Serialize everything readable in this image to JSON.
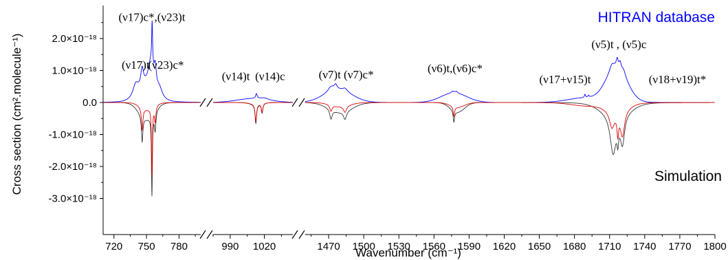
{
  "chart_data": {
    "type": "line",
    "xlabel": "Wavenumber (cm⁻¹)",
    "ylabel": "Cross section (cm².molecule⁻¹)",
    "ylim": [
      -3.3e-18,
      2.55e-18
    ],
    "grid": false,
    "x_segments": [
      {
        "range": [
          710,
          800
        ],
        "ticks": [
          720,
          750,
          780
        ]
      },
      {
        "range": [
          975,
          1045
        ],
        "ticks": [
          990,
          1020
        ]
      },
      {
        "range": [
          1450,
          1800
        ],
        "ticks": [
          1470,
          1500,
          1530,
          1560,
          1590,
          1620,
          1650,
          1680,
          1710,
          1740,
          1770,
          1800
        ]
      }
    ],
    "y_ticks": [
      {
        "value": 2e-18,
        "label": "2.0×10⁻¹⁸"
      },
      {
        "value": 1e-18,
        "label": "1.0×10⁻¹⁸"
      },
      {
        "value": 0,
        "label": "0.0"
      },
      {
        "value": -1e-18,
        "label": "-1.0×10⁻¹⁸"
      },
      {
        "value": -2e-18,
        "label": "-2.0×10⁻¹⁸"
      },
      {
        "value": -3e-18,
        "label": "-3.0×10⁻¹⁸"
      }
    ],
    "series": [
      {
        "name": "HITRAN database",
        "color": "#0000ff",
        "sign": 1,
        "background": [
          {
            "center": 750,
            "width": 8,
            "height": 0.45
          },
          {
            "center": 1010,
            "width": 14,
            "height": 0.12
          },
          {
            "center": 1478,
            "width": 12,
            "height": 0.38
          },
          {
            "center": 1577,
            "width": 11,
            "height": 0.3
          },
          {
            "center": 1688,
            "width": 14,
            "height": 0.14
          },
          {
            "center": 1716,
            "width": 9,
            "height": 1.05
          }
        ],
        "bands": [
          {
            "center": 740,
            "width": 3,
            "height": 0.35
          },
          {
            "center": 746,
            "width": 1.5,
            "height": 0.55
          },
          {
            "center": 754,
            "width": 3,
            "height": 0.8
          },
          {
            "center": 755.2,
            "width": 0.5,
            "height": 1.35
          },
          {
            "center": 758,
            "width": 1.2,
            "height": 0.6
          },
          {
            "center": 762,
            "width": 3,
            "height": 0.25
          },
          {
            "center": 1013,
            "width": 0.8,
            "height": 0.15
          },
          {
            "center": 1020,
            "width": 4,
            "height": 0.05
          },
          {
            "center": 1472,
            "width": 3,
            "height": 0.15
          },
          {
            "center": 1476,
            "width": 1.5,
            "height": 0.15
          },
          {
            "center": 1484,
            "width": 2.5,
            "height": 0.1
          },
          {
            "center": 1576,
            "width": 1.2,
            "height": 0.05
          },
          {
            "center": 1579,
            "width": 1.2,
            "height": 0.05
          },
          {
            "center": 1689,
            "width": 0.6,
            "height": 0.1
          },
          {
            "center": 1692,
            "width": 0.6,
            "height": 0.06
          },
          {
            "center": 1712,
            "width": 2.5,
            "height": 0.2
          },
          {
            "center": 1716.5,
            "width": 1,
            "height": 0.25
          },
          {
            "center": 1719,
            "width": 1,
            "height": 0.2
          },
          {
            "center": 1722,
            "width": 2,
            "height": 0.15
          }
        ]
      },
      {
        "name": "Simulation",
        "color": "#333333",
        "sign": -1,
        "background": [
          {
            "center": 750,
            "width": 7,
            "height": 0.5
          },
          {
            "center": 1012,
            "width": 5,
            "height": 0.05
          },
          {
            "center": 1480,
            "width": 10,
            "height": 0.3
          },
          {
            "center": 1580,
            "width": 6,
            "height": 0.3
          },
          {
            "center": 1715,
            "width": 12,
            "height": 0.35
          }
        ],
        "bands": [
          {
            "center": 746,
            "width": 0.8,
            "height": 0.8
          },
          {
            "center": 755,
            "width": 0.5,
            "height": 2.5
          },
          {
            "center": 758,
            "width": 0.8,
            "height": 0.6
          },
          {
            "center": 1012.5,
            "width": 0.8,
            "height": 0.6
          },
          {
            "center": 1018,
            "width": 0.8,
            "height": 0.3
          },
          {
            "center": 1472,
            "width": 1.2,
            "height": 0.3
          },
          {
            "center": 1484,
            "width": 1.5,
            "height": 0.25
          },
          {
            "center": 1577,
            "width": 0.7,
            "height": 0.35
          },
          {
            "center": 1713,
            "width": 3,
            "height": 1.2
          },
          {
            "center": 1717,
            "width": 0.8,
            "height": 0.5
          },
          {
            "center": 1721,
            "width": 2.2,
            "height": 0.9
          }
        ]
      },
      {
        "name": "",
        "color": "#e00000",
        "sign": -1,
        "background": [
          {
            "center": 750,
            "width": 6,
            "height": 0.2
          },
          {
            "center": 1012,
            "width": 5,
            "height": 0.04
          },
          {
            "center": 1480,
            "width": 8,
            "height": 0.12
          },
          {
            "center": 1580,
            "width": 6,
            "height": 0.15
          },
          {
            "center": 1690,
            "width": 13,
            "height": 0.1
          },
          {
            "center": 1716,
            "width": 9,
            "height": 0.25
          }
        ],
        "bands": [
          {
            "center": 746,
            "width": 0.8,
            "height": 0.7
          },
          {
            "center": 755,
            "width": 0.5,
            "height": 2.1
          },
          {
            "center": 758,
            "width": 0.8,
            "height": 0.5
          },
          {
            "center": 1012.5,
            "width": 0.8,
            "height": 0.55
          },
          {
            "center": 1018,
            "width": 0.8,
            "height": 0.28
          },
          {
            "center": 1472,
            "width": 1.2,
            "height": 0.2
          },
          {
            "center": 1484,
            "width": 1.5,
            "height": 0.2
          },
          {
            "center": 1577,
            "width": 0.7,
            "height": 0.3
          },
          {
            "center": 1712,
            "width": 2.5,
            "height": 0.5
          },
          {
            "center": 1717,
            "width": 0.8,
            "height": 0.6
          },
          {
            "center": 1721,
            "width": 2.2,
            "height": 0.8
          }
        ]
      }
    ],
    "legend_labels": [
      {
        "text": "HITRAN database",
        "color": "#0000ff",
        "position": "top-right"
      },
      {
        "text": "Simulation",
        "color": "#000000",
        "position": "bottom-right"
      }
    ],
    "annotations": [
      {
        "text": "(ν17)c*,(ν23)t",
        "x": 755,
        "y": 2.55e-18
      },
      {
        "text": "(ν17)t",
        "x": 740,
        "y": 1.05e-18
      },
      {
        "text": "(ν23)c*",
        "x": 768,
        "y": 1.05e-18
      },
      {
        "text": "(ν14)t",
        "x": 995,
        "y": 7e-19
      },
      {
        "text": "(ν14)c",
        "x": 1025,
        "y": 7e-19
      },
      {
        "text": "(ν7)t (ν7)c*",
        "x": 1485,
        "y": 7.5e-19
      },
      {
        "text": "(ν6)t,(ν6)c*",
        "x": 1578,
        "y": 9.5e-19
      },
      {
        "text": "(ν5)t , (ν5)c",
        "x": 1718,
        "y": 1.7e-18
      },
      {
        "text": "(ν17+ν15)t",
        "x": 1672,
        "y": 6e-19
      },
      {
        "text": "(ν18+ν19)t*",
        "x": 1768,
        "y": 6e-19
      }
    ]
  }
}
